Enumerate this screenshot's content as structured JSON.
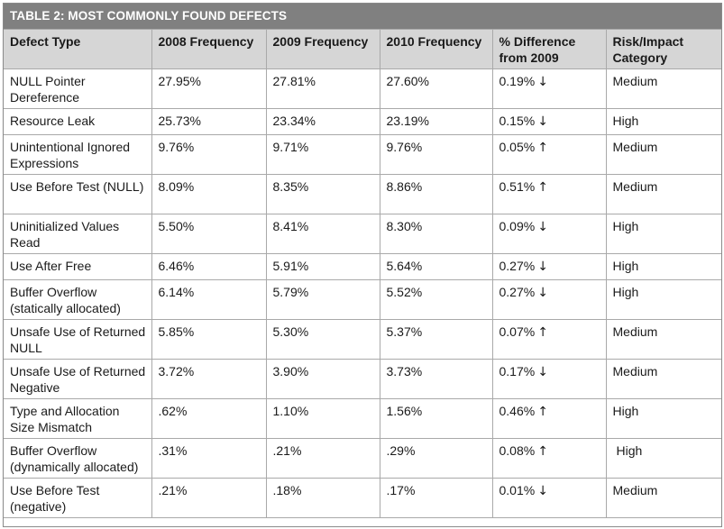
{
  "table": {
    "title": "TABLE 2: MOST COMMONLY FOUND DEFECTS",
    "headers": [
      "Defect Type",
      "2008 Frequency",
      "2009 Frequency",
      "2010 Frequency",
      "% Difference from 2009",
      "Risk/Impact Category"
    ],
    "rows": [
      {
        "defect": "NULL Pointer Dereference",
        "f2008": "27.95%",
        "f2009": "27.81%",
        "f2010": "27.60%",
        "diff": "0.19%",
        "direction": "↓",
        "risk": "Medium"
      },
      {
        "defect": "Resource Leak",
        "f2008": "25.73%",
        "f2009": "23.34%",
        "f2010": "23.19%",
        "diff": "0.15%",
        "direction": "↓",
        "risk": "High"
      },
      {
        "defect": "Unintentional Ignored Expressions",
        "f2008": "9.76%",
        "f2009": "9.71%",
        "f2010": "9.76%",
        "diff": "0.05%",
        "direction": "↑",
        "risk": "Medium"
      },
      {
        "defect": "Use Before Test (NULL)",
        "f2008": "8.09%",
        "f2009": "8.35%",
        "f2010": "8.86%",
        "diff": "0.51%",
        "direction": "↑",
        "risk": "Medium"
      },
      {
        "defect": "Uninitialized Values Read",
        "f2008": "5.50%",
        "f2009": "8.41%",
        "f2010": "8.30%",
        "diff": "0.09%",
        "direction": "↓",
        "risk": "High"
      },
      {
        "defect": "Use After Free",
        "f2008": "6.46%",
        "f2009": "5.91%",
        "f2010": "5.64%",
        "diff": "0.27%",
        "direction": "↓",
        "risk": "High"
      },
      {
        "defect": "Buffer Overflow (statically allocated)",
        "f2008": "6.14%",
        "f2009": "5.79%",
        "f2010": "5.52%",
        "diff": "0.27%",
        "direction": "↓",
        "risk": "High"
      },
      {
        "defect": "Unsafe Use of Returned NULL",
        "f2008": "5.85%",
        "f2009": "5.30%",
        "f2010": "5.37%",
        "diff": "0.07%",
        "direction": "↑",
        "risk": "Medium"
      },
      {
        "defect": "Unsafe Use of Returned Negative",
        "f2008": "3.72%",
        "f2009": "3.90%",
        "f2010": "3.73%",
        "diff": "0.17%",
        "direction": "↓",
        "risk": "Medium"
      },
      {
        "defect": "Type and Allocation Size Mismatch",
        "f2008": ".62%",
        "f2009": "1.10%",
        "f2010": "1.56%",
        "diff": "0.46%",
        "direction": "↑",
        "risk": "High"
      },
      {
        "defect": "Buffer Overflow (dynamically allocated)",
        "f2008": ".31%",
        "f2009": ".21%",
        "f2010": ".29%",
        "diff": "0.08%",
        "direction": "↑",
        "risk": "High"
      },
      {
        "defect": "Use Before Test (negative)",
        "f2008": ".21%",
        "f2009": ".18%",
        "f2010": ".17%",
        "diff": "0.01%",
        "direction": "↓",
        "risk": "Medium"
      }
    ]
  },
  "colors": {
    "title_bg": "#808080",
    "header_bg": "#d6d6d6",
    "border": "#a9a9a9"
  }
}
